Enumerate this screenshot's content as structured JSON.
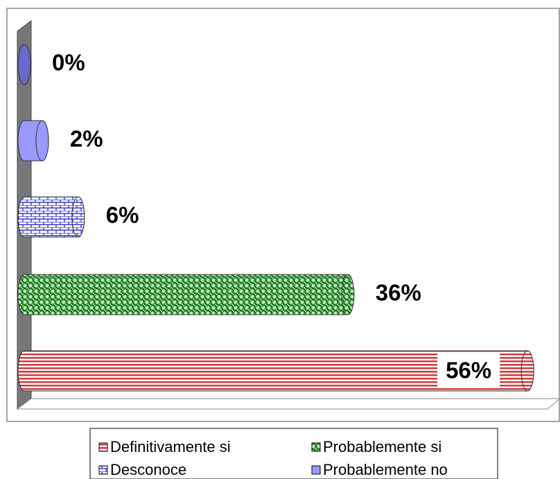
{
  "chart_data": {
    "type": "bar",
    "orientation": "horizontal",
    "series": [
      {
        "name": "Definitivamente si",
        "color": "#d03a3a",
        "values": [
          56
        ],
        "value_labels": [
          "56%"
        ]
      },
      {
        "name": "Probablemente si",
        "color": "#229922",
        "values": [
          36
        ],
        "value_labels": [
          "36%"
        ]
      },
      {
        "name": "Desconoce",
        "color": "#3a3ac8",
        "values": [
          6
        ],
        "value_labels": [
          "6%"
        ]
      },
      {
        "name": "Probablemente no",
        "color": "#9999ff",
        "values": [
          2
        ],
        "value_labels": [
          "2%"
        ]
      },
      {
        "color": "#6a6acc",
        "values": [
          0
        ],
        "value_labels": [
          "0%"
        ]
      }
    ],
    "xlim": [
      0,
      59
    ],
    "legend": "bottom"
  }
}
